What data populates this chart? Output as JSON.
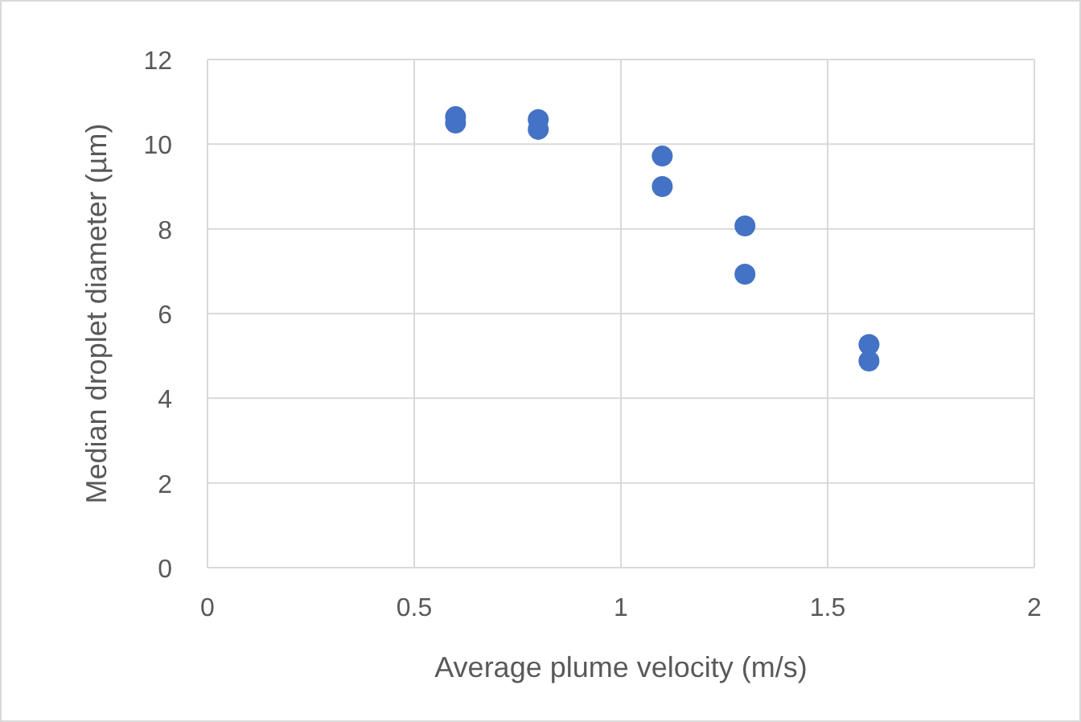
{
  "chart_data": {
    "type": "scatter",
    "xlabel": "Average plume velocity (m/s)",
    "ylabel": "Median droplet diameter (µm)",
    "x": [
      0.6,
      0.6,
      0.8,
      0.8,
      1.1,
      1.1,
      1.3,
      1.3,
      1.6,
      1.6
    ],
    "series": [
      {
        "color": "#4472c4",
        "values": [
          10.65,
          10.5,
          10.58,
          10.35,
          9.72,
          9.0,
          8.07,
          6.93,
          5.27,
          4.88
        ]
      }
    ],
    "xlim": [
      0,
      2
    ],
    "xticks": [
      0,
      0.5,
      1,
      1.5,
      2
    ],
    "ylim": [
      0,
      12
    ],
    "yticks": [
      0,
      2,
      4,
      6,
      8,
      10,
      12
    ],
    "grid": true,
    "marker": "circle"
  }
}
